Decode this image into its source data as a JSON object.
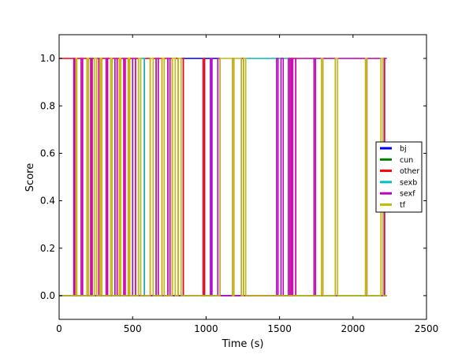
{
  "chart_data": {
    "type": "line",
    "title": "",
    "xlabel": "Time (s)",
    "ylabel": "Score",
    "xlim": [
      0,
      2500
    ],
    "ylim": [
      -0.1,
      1.1
    ],
    "xticks": [
      0,
      500,
      1000,
      1500,
      2000,
      2500
    ],
    "xtick_labels": [
      "0",
      "500",
      "1000",
      "1500",
      "2000",
      "2500"
    ],
    "yticks": [
      0.0,
      0.2,
      0.4,
      0.6,
      0.8,
      1.0
    ],
    "ytick_labels": [
      "0.0",
      "0.2",
      "0.4",
      "0.6",
      "0.8",
      "1.0"
    ],
    "grid": false,
    "legend_position": "right",
    "series": [
      {
        "name": "bj",
        "color": "#0000ff"
      },
      {
        "name": "cun",
        "color": "#008000"
      },
      {
        "name": "other",
        "color": "#ff0000"
      },
      {
        "name": "sexb",
        "color": "#00bfbf"
      },
      {
        "name": "sexf",
        "color": "#bf00bf"
      },
      {
        "name": "tf",
        "color": "#bfbf00"
      }
    ],
    "end_time": 2230,
    "dominant_segments": [
      [
        0,
        "other"
      ],
      [
        100,
        "sexf"
      ],
      [
        105,
        "other"
      ],
      [
        115,
        "tf"
      ],
      [
        120,
        "other"
      ],
      [
        150,
        "sexf"
      ],
      [
        160,
        "other"
      ],
      [
        190,
        "tf"
      ],
      [
        200,
        "other"
      ],
      [
        215,
        "sexf"
      ],
      [
        225,
        "other"
      ],
      [
        240,
        "tf"
      ],
      [
        255,
        "other"
      ],
      [
        270,
        "sexf"
      ],
      [
        280,
        "tf"
      ],
      [
        290,
        "other"
      ],
      [
        320,
        "sexf"
      ],
      [
        330,
        "other"
      ],
      [
        350,
        "tf"
      ],
      [
        360,
        "other"
      ],
      [
        380,
        "sexf"
      ],
      [
        395,
        "other"
      ],
      [
        410,
        "tf"
      ],
      [
        420,
        "other"
      ],
      [
        440,
        "sexf"
      ],
      [
        450,
        "other"
      ],
      [
        470,
        "tf"
      ],
      [
        480,
        "other"
      ],
      [
        500,
        "sexf"
      ],
      [
        520,
        "other"
      ],
      [
        540,
        "tf"
      ],
      [
        555,
        "sexb"
      ],
      [
        580,
        "other"
      ],
      [
        620,
        "tf"
      ],
      [
        640,
        "other"
      ],
      [
        660,
        "sexf"
      ],
      [
        675,
        "other"
      ],
      [
        700,
        "tf"
      ],
      [
        715,
        "other"
      ],
      [
        740,
        "sexf"
      ],
      [
        755,
        "other"
      ],
      [
        770,
        "tf"
      ],
      [
        790,
        "other"
      ],
      [
        810,
        "tf"
      ],
      [
        830,
        "other"
      ],
      [
        845,
        "bj"
      ],
      [
        980,
        "other"
      ],
      [
        990,
        "bj"
      ],
      [
        1030,
        "sexf"
      ],
      [
        1040,
        "bj"
      ],
      [
        1080,
        "sexf"
      ],
      [
        1095,
        "tf"
      ],
      [
        1180,
        "sexf"
      ],
      [
        1190,
        "tf"
      ],
      [
        1240,
        "sexf"
      ],
      [
        1255,
        "tf"
      ],
      [
        1270,
        "sexb"
      ],
      [
        1480,
        "sexf"
      ],
      [
        1490,
        "sexb"
      ],
      [
        1510,
        "sexf"
      ],
      [
        1525,
        "sexb"
      ],
      [
        1560,
        "sexf"
      ],
      [
        1570,
        "other"
      ],
      [
        1580,
        "sexf"
      ],
      [
        1590,
        "other"
      ],
      [
        1610,
        "sexf"
      ],
      [
        1735,
        "other"
      ],
      [
        1745,
        "sexf"
      ],
      [
        1785,
        "tf"
      ],
      [
        1795,
        "sexf"
      ],
      [
        1880,
        "tf"
      ],
      [
        1895,
        "sexf"
      ],
      [
        2085,
        "tf"
      ],
      [
        2095,
        "sexf"
      ],
      [
        2190,
        "tf"
      ],
      [
        2205,
        "other"
      ],
      [
        2215,
        "sexf"
      ]
    ]
  }
}
